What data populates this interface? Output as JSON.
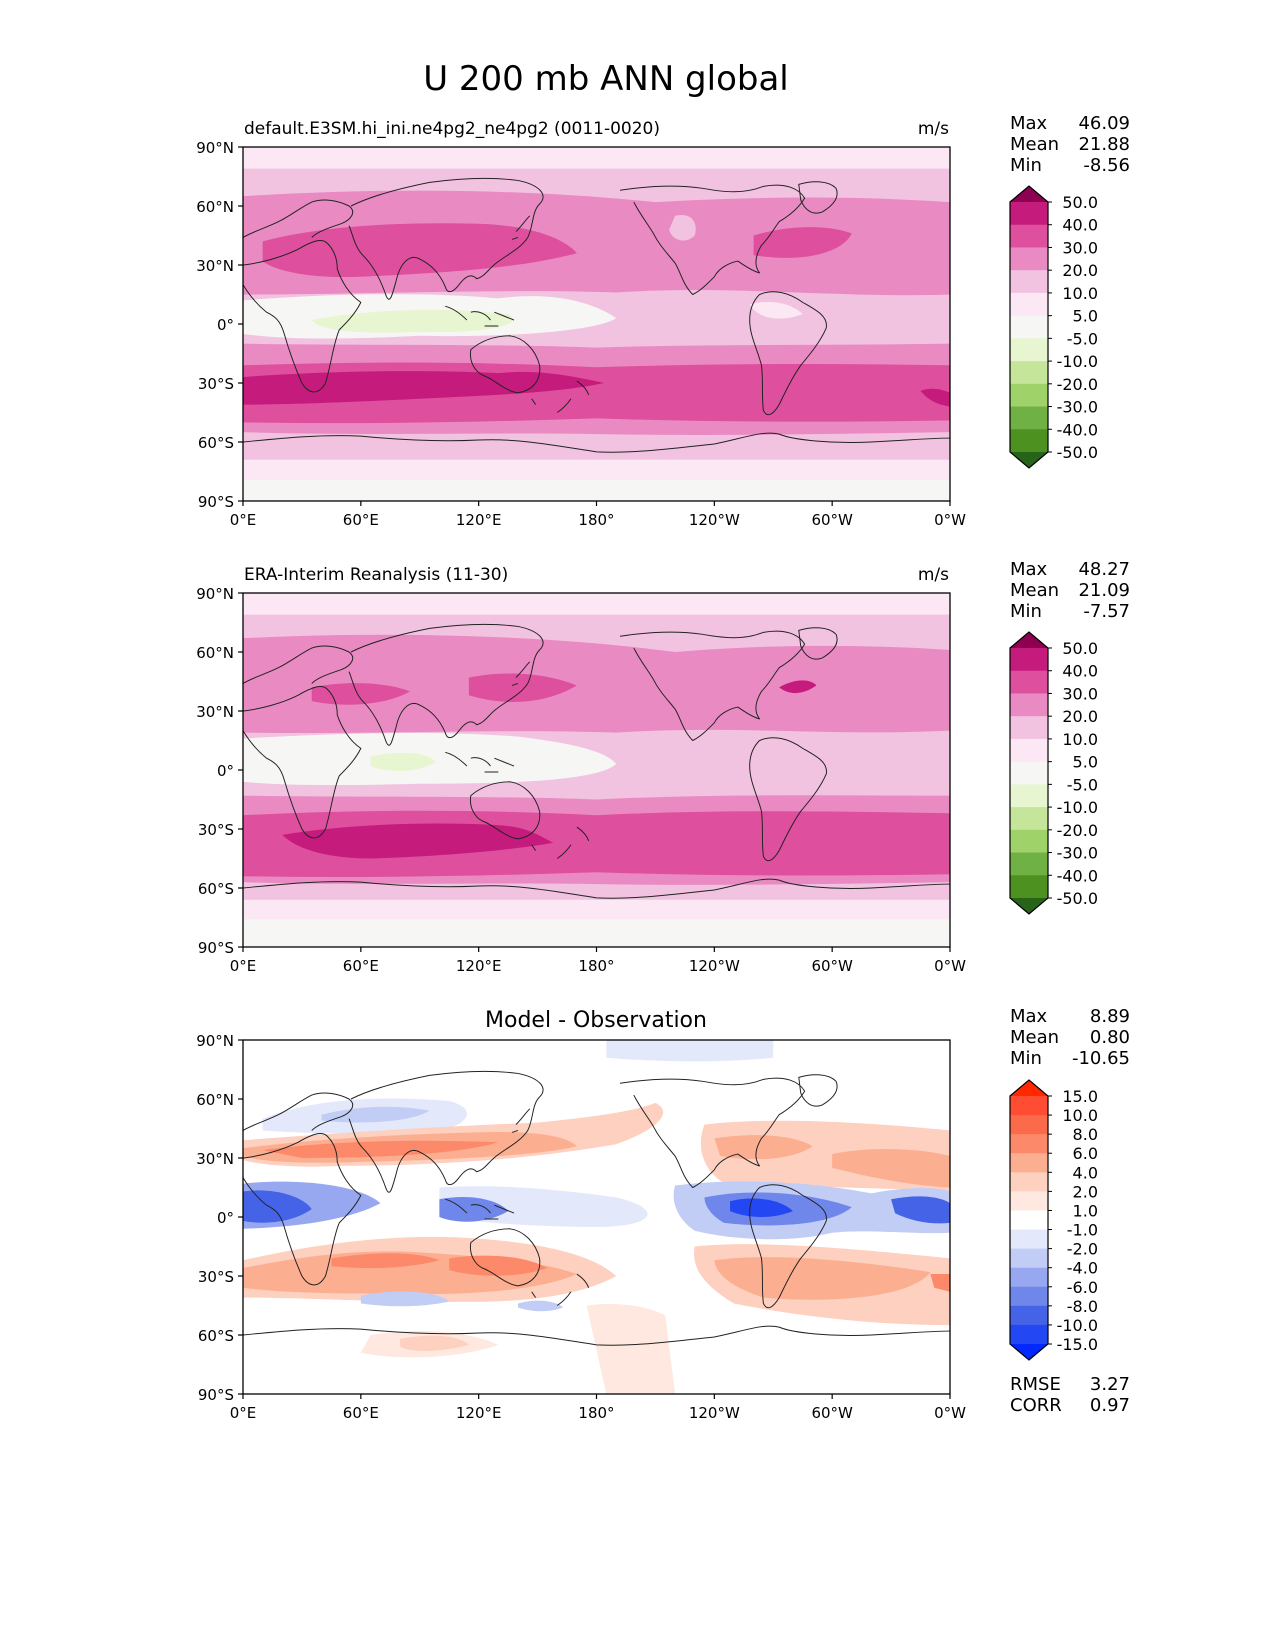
{
  "figure": {
    "title": "U 200 mb ANN global"
  },
  "panels": [
    {
      "id": "test",
      "left_title": "default.E3SM.hi_ini.ne4pg2_ne4pg2 (0011-0020)",
      "center_title": "",
      "units": "m/s",
      "stats": [
        {
          "label": "Max",
          "value": "46.09"
        },
        {
          "label": "Mean",
          "value": "21.88"
        },
        {
          "label": "Min",
          "value": "-8.56"
        }
      ],
      "colorbar": {
        "levels": [
          "50.0",
          "40.0",
          "30.0",
          "20.0",
          "10.0",
          "5.0",
          "-5.0",
          "-10.0",
          "-20.0",
          "-30.0",
          "-40.0",
          "-50.0"
        ],
        "colors": [
          "#8e0152",
          "#c51b7d",
          "#de4f9d",
          "#e98bc2",
          "#f2c3e0",
          "#fbe8f4",
          "#f6f6f4",
          "#e7f5d0",
          "#c5e69a",
          "#9fd269",
          "#6fb144",
          "#4d9221",
          "#276419"
        ]
      },
      "stats_bottom": []
    },
    {
      "id": "reference",
      "left_title": "ERA-Interim Reanalysis (11-30)",
      "center_title": "",
      "units": "m/s",
      "stats": [
        {
          "label": "Max",
          "value": "48.27"
        },
        {
          "label": "Mean",
          "value": "21.09"
        },
        {
          "label": "Min",
          "value": "-7.57"
        }
      ],
      "colorbar": {
        "levels": [
          "50.0",
          "40.0",
          "30.0",
          "20.0",
          "10.0",
          "5.0",
          "-5.0",
          "-10.0",
          "-20.0",
          "-30.0",
          "-40.0",
          "-50.0"
        ],
        "colors": [
          "#8e0152",
          "#c51b7d",
          "#de4f9d",
          "#e98bc2",
          "#f2c3e0",
          "#fbe8f4",
          "#f6f6f4",
          "#e7f5d0",
          "#c5e69a",
          "#9fd269",
          "#6fb144",
          "#4d9221",
          "#276419"
        ]
      },
      "stats_bottom": []
    },
    {
      "id": "difference",
      "left_title": "",
      "center_title": "Model - Observation",
      "units": "",
      "stats": [
        {
          "label": "Max",
          "value": "8.89"
        },
        {
          "label": "Mean",
          "value": "0.80"
        },
        {
          "label": "Min",
          "value": "-10.65"
        }
      ],
      "colorbar": {
        "levels": [
          "15.0",
          "10.0",
          "8.0",
          "6.0",
          "4.0",
          "2.0",
          "1.0",
          "-1.0",
          "-2.0",
          "-4.0",
          "-6.0",
          "-8.0",
          "-10.0",
          "-15.0"
        ],
        "colors": [
          "#ff2800",
          "#ff4d33",
          "#fb6a4a",
          "#fc8a6a",
          "#fcae91",
          "#fdd0bf",
          "#fee8df",
          "#ffffff",
          "#e3e8fb",
          "#c2cdf6",
          "#98a8f0",
          "#6f86eb",
          "#4563e6",
          "#2347f2",
          "#0028ff"
        ]
      },
      "stats_bottom": [
        {
          "label": "RMSE",
          "value": "3.27"
        },
        {
          "label": "CORR",
          "value": "0.97"
        }
      ]
    }
  ],
  "map": {
    "lon_ticks": [
      "0°E",
      "60°E",
      "120°E",
      "180°",
      "120°W",
      "60°W",
      "0°W"
    ],
    "lat_ticks": [
      "90°N",
      "60°N",
      "30°N",
      "0°",
      "30°S",
      "60°S",
      "90°S"
    ],
    "lon_range": [
      0,
      360
    ],
    "lat_range": [
      -90,
      90
    ],
    "projection": "PlateCarree",
    "coastlines": true,
    "field_kind": "contour filled"
  }
}
